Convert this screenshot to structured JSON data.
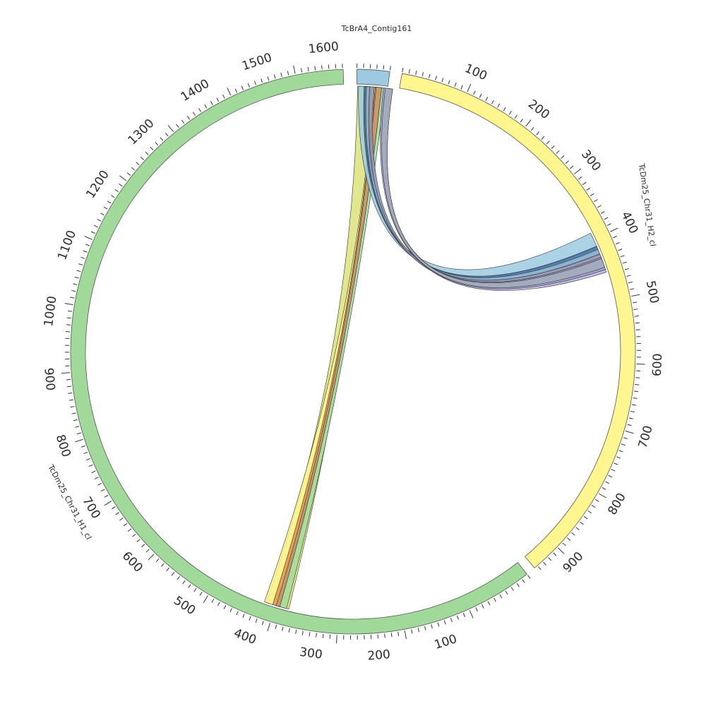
{
  "chart_data": {
    "type": "chord",
    "title": "",
    "segments": [
      {
        "id": "contig",
        "name": "TcBrA4_Contig161",
        "color": "#9ecae1",
        "start_deg": 0.8,
        "end_deg": 7.5,
        "labels": []
      },
      {
        "id": "h2",
        "name": "TcDm25_Chr31_H2_cl",
        "color": "#fff68f",
        "start_deg": 10.0,
        "end_deg": 140.0,
        "direction": 1,
        "deg_per_unit": 0.1375,
        "offset_units": 0,
        "labels": [
          "100",
          "200",
          "300",
          "400",
          "500",
          "600",
          "700",
          "800",
          "900"
        ]
      },
      {
        "id": "h1",
        "name": "TcDm25_Chr31_H1_cl",
        "color": "#a1d99b",
        "start_deg": 142.0,
        "end_deg": 358.0,
        "direction": -1,
        "deg_per_unit": 0.1375,
        "offset_units": 0,
        "labels": [
          "100",
          "200",
          "300",
          "400",
          "500",
          "600",
          "700",
          "800",
          "900",
          "1000",
          "1100",
          "1200",
          "1300",
          "1400",
          "1500",
          "1600"
        ]
      }
    ],
    "ticks": {
      "h2": {
        "first_deg": 10.0,
        "step_deg": 1.375,
        "count": 95
      },
      "h1": {
        "first_deg": 142.0,
        "step_deg": 1.375,
        "count": 158
      },
      "contig": {
        "first_deg": 0.8,
        "step_deg": 1.34,
        "count": 6
      }
    },
    "links": [
      {
        "color": "#dce37a",
        "from": [
          1.0,
          4.8
        ],
        "to": [
          194.0,
          199.0
        ]
      },
      {
        "color": "#fff68f",
        "from": [
          4.6,
          6.0
        ],
        "to": [
          196.8,
          199.5
        ]
      },
      {
        "color": "#a1d99b",
        "from": [
          6.0,
          7.0
        ],
        "to": [
          194.5,
          196.6
        ]
      },
      {
        "color": "#e3944a",
        "from": [
          4.8,
          6.2
        ],
        "to": [
          196.2,
          197.6
        ]
      },
      {
        "color": "#c49a6c",
        "from": [
          5.0,
          6.2
        ],
        "to": [
          196.0,
          196.8
        ]
      },
      {
        "color": "#b5b3dd",
        "from": [
          7.5,
          8.6
        ],
        "to": [
          69.0,
          72.6
        ]
      },
      {
        "color": "#9ecae1",
        "from": [
          1.2,
          2.6
        ],
        "to": [
          63.5,
          66.8
        ]
      },
      {
        "color": "#3f6fa8",
        "from": [
          2.4,
          2.9
        ],
        "to": [
          66.6,
          67.5
        ]
      },
      {
        "color": "#7aa8c8",
        "from": [
          2.9,
          3.8
        ],
        "to": [
          67.3,
          68.6
        ]
      },
      {
        "color": "#8f8fb5",
        "from": [
          3.6,
          4.6
        ],
        "to": [
          68.4,
          70.6
        ]
      },
      {
        "color": "#a3a1cf",
        "from": [
          6.6,
          8.2
        ],
        "to": [
          69.2,
          72.0
        ]
      },
      {
        "color": "#a3aebc",
        "from": [
          7.0,
          8.6
        ],
        "to": [
          69.5,
          71.5
        ]
      }
    ]
  }
}
